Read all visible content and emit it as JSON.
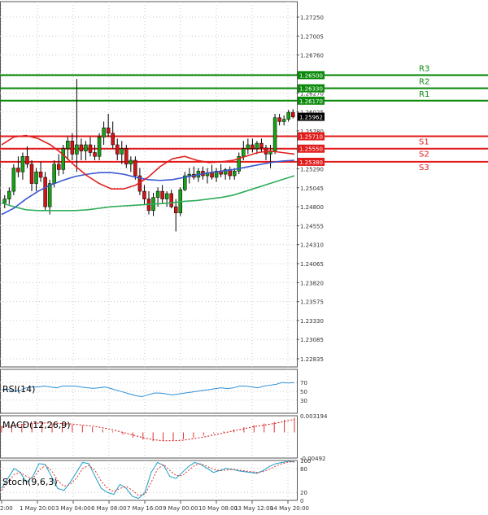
{
  "chart_data": {
    "type": "candlestick",
    "main": {
      "ylim": [
        1.2273,
        1.2745
      ],
      "y_ticks": [
        "1.27250",
        "1.27005",
        "1.26760",
        "1.26515",
        "1.26270",
        "1.26025",
        "1.25780",
        "1.25535",
        "1.25290",
        "1.25045",
        "1.24800",
        "1.24555",
        "1.24310",
        "1.24065",
        "1.23820",
        "1.23575",
        "1.23330",
        "1.23085",
        "1.22835"
      ],
      "levels": [
        {
          "name": "R3",
          "value": 1.265,
          "label": "1.26500",
          "color": "#0b8a0b"
        },
        {
          "name": "R2",
          "value": 1.2633,
          "label": "1.26330",
          "color": "#0b8a0b"
        },
        {
          "name": "R1",
          "value": 1.2617,
          "label": "1.26170",
          "color": "#0b8a0b"
        },
        {
          "name": "S1",
          "value": 1.2571,
          "label": "1.25710",
          "color": "#e21b1b"
        },
        {
          "name": "S2",
          "value": 1.2555,
          "label": "1.25550",
          "color": "#e21b1b"
        },
        {
          "name": "S3",
          "value": 1.2538,
          "label": "1.25380",
          "color": "#e21b1b"
        }
      ],
      "current_price": {
        "value": 1.25962,
        "label": "1.25962"
      },
      "candles": [
        [
          1.2485,
          1.2495,
          1.2478,
          1.249
        ],
        [
          1.249,
          1.2505,
          1.2483,
          1.25
        ],
        [
          1.25,
          1.2535,
          1.2495,
          1.253
        ],
        [
          1.253,
          1.2545,
          1.2518,
          1.2525
        ],
        [
          1.2525,
          1.255,
          1.2515,
          1.2545
        ],
        [
          1.2545,
          1.2558,
          1.253,
          1.2535
        ],
        [
          1.2535,
          1.254,
          1.25,
          1.251
        ],
        [
          1.251,
          1.253,
          1.25,
          1.2525
        ],
        [
          1.2525,
          1.2538,
          1.2512,
          1.2518
        ],
        [
          1.2518,
          1.2525,
          1.2475,
          1.248
        ],
        [
          1.248,
          1.2515,
          1.247,
          1.251
        ],
        [
          1.251,
          1.254,
          1.2505,
          1.2535
        ],
        [
          1.2535,
          1.2548,
          1.252,
          1.2528
        ],
        [
          1.2528,
          1.256,
          1.2522,
          1.2555
        ],
        [
          1.2555,
          1.257,
          1.254,
          1.2565
        ],
        [
          1.2565,
          1.2575,
          1.254,
          1.2548
        ],
        [
          1.2548,
          1.2645,
          1.2525,
          1.256
        ],
        [
          1.256,
          1.2568,
          1.254,
          1.2552
        ],
        [
          1.2552,
          1.2565,
          1.254,
          1.256
        ],
        [
          1.256,
          1.257,
          1.2545,
          1.255
        ],
        [
          1.255,
          1.256,
          1.254,
          1.2545
        ],
        [
          1.2545,
          1.2575,
          1.254,
          1.257
        ],
        [
          1.257,
          1.259,
          1.256,
          1.2582
        ],
        [
          1.2582,
          1.26,
          1.257,
          1.2575
        ],
        [
          1.2575,
          1.259,
          1.2555,
          1.256
        ],
        [
          1.256,
          1.2568,
          1.254,
          1.2548
        ],
        [
          1.2548,
          1.2565,
          1.2535,
          1.2555
        ],
        [
          1.2555,
          1.256,
          1.253,
          1.2535
        ],
        [
          1.2535,
          1.2545,
          1.2525,
          1.254
        ],
        [
          1.254,
          1.2545,
          1.2515,
          1.252
        ],
        [
          1.252,
          1.253,
          1.2495,
          1.25
        ],
        [
          1.25,
          1.2508,
          1.2482,
          1.249
        ],
        [
          1.249,
          1.25,
          1.247,
          1.2475
        ],
        [
          1.2475,
          1.2498,
          1.2468,
          1.2492
        ],
        [
          1.2492,
          1.2505,
          1.248,
          1.25
        ],
        [
          1.25,
          1.2508,
          1.2485,
          1.249
        ],
        [
          1.249,
          1.25,
          1.248,
          1.2497
        ],
        [
          1.2497,
          1.2502,
          1.2478,
          1.248
        ],
        [
          1.248,
          1.249,
          1.2448,
          1.2472
        ],
        [
          1.2472,
          1.2505,
          1.2468,
          1.2502
        ],
        [
          1.2502,
          1.2525,
          1.25,
          1.252
        ],
        [
          1.252,
          1.253,
          1.251,
          1.2522
        ],
        [
          1.2522,
          1.2532,
          1.2515,
          1.2518
        ],
        [
          1.2518,
          1.253,
          1.2512,
          1.2526
        ],
        [
          1.2526,
          1.2532,
          1.2515,
          1.252
        ],
        [
          1.252,
          1.253,
          1.251,
          1.2524
        ],
        [
          1.2524,
          1.2534,
          1.2515,
          1.2518
        ],
        [
          1.2518,
          1.253,
          1.2512,
          1.2526
        ],
        [
          1.2526,
          1.2535,
          1.2518,
          1.2522
        ],
        [
          1.2522,
          1.253,
          1.2515,
          1.2528
        ],
        [
          1.2528,
          1.2532,
          1.2515,
          1.252
        ],
        [
          1.252,
          1.253,
          1.2515,
          1.2526
        ],
        [
          1.2526,
          1.255,
          1.2522,
          1.2545
        ],
        [
          1.2545,
          1.2565,
          1.254,
          1.2555
        ],
        [
          1.2555,
          1.2568,
          1.2548,
          1.256
        ],
        [
          1.256,
          1.2568,
          1.255,
          1.2555
        ],
        [
          1.2555,
          1.2565,
          1.2548,
          1.2562
        ],
        [
          1.2562,
          1.2568,
          1.255,
          1.2556
        ],
        [
          1.2556,
          1.256,
          1.254,
          1.2548
        ],
        [
          1.2548,
          1.256,
          1.253,
          1.2552
        ],
        [
          1.2552,
          1.26,
          1.2548,
          1.2595
        ],
        [
          1.2595,
          1.26,
          1.2585,
          1.259
        ],
        [
          1.259,
          1.2598,
          1.2585,
          1.2593
        ],
        [
          1.2593,
          1.2605,
          1.259,
          1.2602
        ],
        [
          1.2602,
          1.2606,
          1.2594,
          1.2596
        ]
      ],
      "ma_red": [
        1.256,
        1.257,
        1.2572,
        1.2568,
        1.256,
        1.2548,
        1.2533,
        1.252,
        1.251,
        1.2503,
        1.2503,
        1.2508,
        1.2518,
        1.2532,
        1.2542,
        1.2545,
        1.254,
        1.2537,
        1.2538,
        1.254,
        1.2545,
        1.255,
        1.2552,
        1.255,
        1.2548
      ],
      "ma_blue": [
        1.247,
        1.2478,
        1.249,
        1.25,
        1.2508,
        1.2514,
        1.2519,
        1.2522,
        1.2524,
        1.2524,
        1.2522,
        1.2518,
        1.2515,
        1.2514,
        1.2515,
        1.2518,
        1.2521,
        1.2524,
        1.2526,
        1.2528,
        1.2531,
        1.2534,
        1.2537,
        1.2539,
        1.254
      ],
      "ma_green": [
        1.2485,
        1.248,
        1.2476,
        1.2475,
        1.2475,
        1.2475,
        1.2475,
        1.2476,
        1.2478,
        1.248,
        1.2481,
        1.2482,
        1.2483,
        1.2484,
        1.2485,
        1.2487,
        1.2488,
        1.249,
        1.2492,
        1.2495,
        1.25,
        1.2505,
        1.251,
        1.2515,
        1.252
      ]
    },
    "rsi": {
      "label": "RSI(14)",
      "ylim": [
        0,
        100
      ],
      "y_ticks": [
        "70",
        "50",
        "30"
      ],
      "values": [
        53,
        55,
        50,
        52,
        58,
        60,
        60,
        62,
        60,
        58,
        62,
        62,
        62,
        60,
        58,
        57,
        58,
        60,
        56,
        52,
        48,
        44,
        40,
        38,
        42,
        46,
        46,
        44,
        42,
        44,
        46,
        48,
        50,
        52,
        54,
        56,
        58,
        56,
        58,
        62,
        62,
        60,
        58,
        62,
        64,
        66,
        70,
        69,
        70
      ]
    },
    "macd": {
      "label": "MACD(12,26,9)",
      "y_ticks": [
        "0.003194",
        "-0.00492"
      ],
      "values": [
        0.0012,
        0.0014,
        0.0016,
        0.0018,
        0.0018,
        0.0017,
        0.0016,
        0.0015,
        0.0013,
        0.001,
        0.0006,
        0.0002,
        -0.0004,
        -0.001,
        -0.0014,
        -0.0017,
        -0.0017,
        -0.0016,
        -0.0013,
        -0.001,
        -0.0006,
        -0.0002,
        0.0002,
        0.0006,
        0.001,
        0.0014,
        0.0017,
        0.002,
        0.0024,
        0.0028
      ],
      "signal": [
        0.001,
        0.0013,
        0.0015,
        0.0017,
        0.0018,
        0.0018,
        0.0017,
        0.0016,
        0.0014,
        0.0012,
        0.0009,
        0.0005,
        0.0,
        -0.0005,
        -0.001,
        -0.0014,
        -0.0016,
        -0.0016,
        -0.0015,
        -0.0012,
        -0.0009,
        -0.0005,
        -0.0001,
        0.0003,
        0.0007,
        0.0011,
        0.0014,
        0.0017,
        0.0021,
        0.0025
      ]
    },
    "stoch": {
      "label": "Stoch(9,6,3)",
      "ylim": [
        0,
        100
      ],
      "y_ticks": [
        "100",
        "80",
        "20",
        "0"
      ],
      "k": [
        30,
        55,
        80,
        70,
        45,
        60,
        92,
        90,
        60,
        30,
        25,
        45,
        70,
        95,
        92,
        60,
        30,
        20,
        15,
        40,
        30,
        10,
        5,
        20,
        70,
        95,
        88,
        60,
        55,
        70,
        85,
        95,
        90,
        80,
        70,
        75,
        80,
        78,
        74,
        72,
        70,
        68,
        75,
        85,
        92,
        95,
        98,
        96
      ],
      "d": [
        25,
        45,
        65,
        70,
        60,
        55,
        75,
        88,
        75,
        50,
        35,
        40,
        55,
        80,
        88,
        75,
        48,
        30,
        22,
        30,
        35,
        25,
        12,
        15,
        45,
        78,
        90,
        75,
        62,
        62,
        75,
        88,
        92,
        85,
        78,
        74,
        76,
        78,
        76,
        74,
        72,
        70,
        72,
        78,
        86,
        92,
        96,
        97
      ]
    },
    "x_ticks": [
      "2:00",
      "1 May 20:00",
      "3 May 04:00",
      "6 May 08:00",
      "7 May 16:00",
      "9 May 00:00",
      "10 May 08:00",
      "13 May 12:00",
      "14 May 20:00"
    ]
  }
}
